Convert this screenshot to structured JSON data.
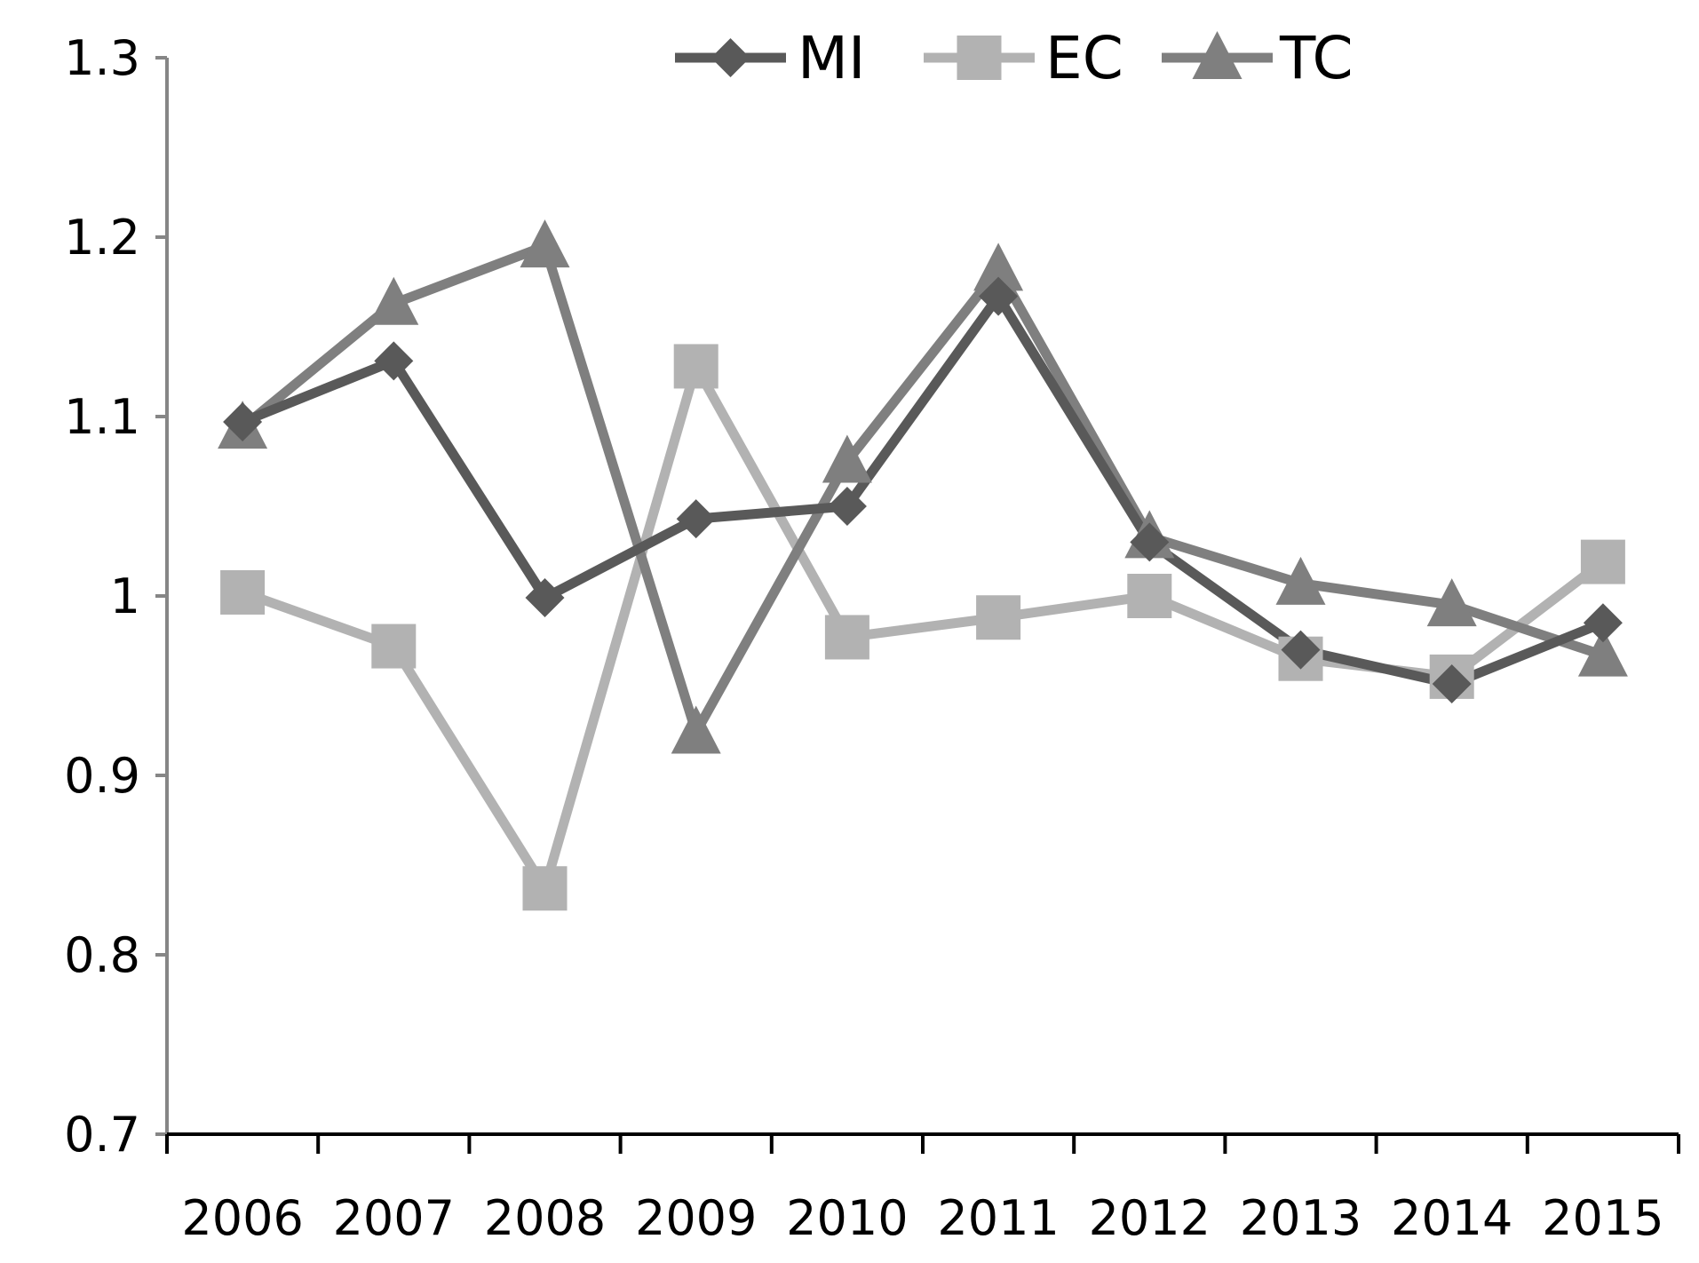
{
  "chart_data": {
    "type": "line",
    "title": "",
    "xlabel": "",
    "ylabel": "",
    "categories": [
      "2006",
      "2007",
      "2008",
      "2009",
      "2010",
      "2011",
      "2012",
      "2013",
      "2014",
      "2015"
    ],
    "ylim": [
      0.7,
      1.3
    ],
    "yticks": [
      0.7,
      0.8,
      0.9,
      1,
      1.1,
      1.2,
      1.3
    ],
    "ytick_labels": [
      "0.7",
      "0.8",
      "0.9",
      "1",
      "1.1",
      "1.2",
      "1.3"
    ],
    "grid": false,
    "legend_position": "top-center",
    "series": [
      {
        "name": "MI",
        "marker": "diamond",
        "color": "#595959",
        "values": [
          1.097,
          1.131,
          0.999,
          1.043,
          1.05,
          1.167,
          1.03,
          0.97,
          0.951,
          0.985
        ]
      },
      {
        "name": "EC",
        "marker": "square",
        "color": "#b2b2b2",
        "values": [
          1.002,
          0.972,
          0.837,
          1.128,
          0.977,
          0.988,
          1.0,
          0.965,
          0.955,
          1.019
        ]
      },
      {
        "name": "TC",
        "marker": "triangle",
        "color": "#7f7f7f",
        "values": [
          1.094,
          1.163,
          1.195,
          0.924,
          1.075,
          1.182,
          1.033,
          1.007,
          0.995,
          0.967
        ]
      }
    ]
  }
}
